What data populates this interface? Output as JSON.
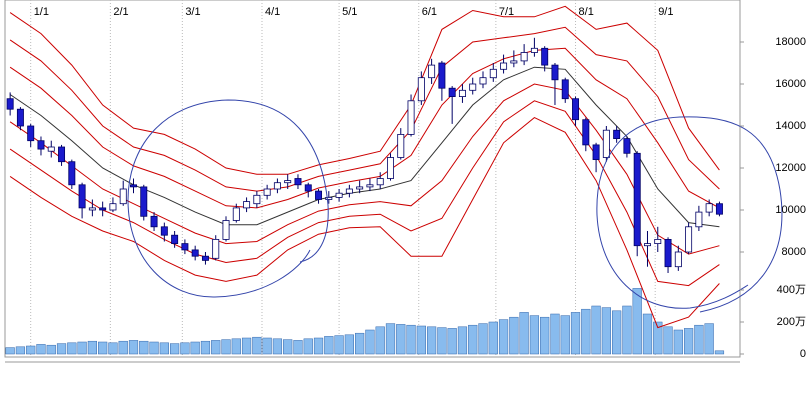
{
  "chart_data": {
    "type": "candlestick",
    "x": [
      -8,
      -4,
      0,
      4,
      8,
      12,
      16,
      20,
      24,
      28,
      32,
      36,
      40,
      44,
      48,
      52,
      56,
      60,
      64,
      68,
      72,
      76,
      80,
      84,
      88,
      92,
      96,
      100,
      104,
      108,
      112,
      116,
      120,
      124,
      128,
      132,
      136,
      140,
      144,
      148,
      152,
      156,
      160,
      164,
      168,
      172,
      176,
      180,
      184,
      188,
      192,
      196,
      200,
      204,
      208,
      212,
      216,
      220,
      224,
      228,
      232,
      236,
      240,
      244,
      248,
      252,
      256,
      260,
      264,
      268
    ],
    "open": [
      15300,
      14800,
      14000,
      13300,
      12800,
      13000,
      12300,
      11200,
      10000,
      10100,
      10000,
      10300,
      11200,
      11100,
      9700,
      9200,
      8800,
      8400,
      8100,
      7800,
      7700,
      8600,
      9500,
      10100,
      10300,
      10700,
      11000,
      11300,
      11500,
      11200,
      10900,
      10500,
      10600,
      10800,
      11000,
      11100,
      11200,
      11500,
      12500,
      13600,
      15200,
      16300,
      17000,
      15800,
      15400,
      15700,
      16000,
      16300,
      16700,
      17000,
      17100,
      17500,
      17700,
      16900,
      16200,
      15300,
      14300,
      13100,
      12500,
      13800,
      13400,
      12700,
      8300,
      8400,
      8600,
      7300,
      8000,
      9200,
      9900,
      10300
    ],
    "high": [
      15600,
      14900,
      14100,
      13500,
      13300,
      13100,
      12400,
      11300,
      10500,
      10400,
      10600,
      11400,
      11500,
      11200,
      9900,
      9400,
      9000,
      8600,
      8300,
      8000,
      8800,
      9700,
      10300,
      10600,
      10900,
      11200,
      11500,
      11700,
      11700,
      11300,
      11000,
      10900,
      11000,
      11200,
      11400,
      11500,
      11800,
      12700,
      13900,
      15500,
      16600,
      17200,
      17100,
      15900,
      16000,
      16300,
      16600,
      17000,
      17400,
      17600,
      17900,
      18200,
      17800,
      17000,
      16300,
      15400,
      14400,
      13200,
      14000,
      14000,
      13500,
      12800,
      9000,
      9200,
      8700,
      8300,
      9400,
      10200,
      10500,
      10400
    ],
    "low": [
      14500,
      13800,
      13000,
      12600,
      12500,
      12100,
      11000,
      9600,
      9700,
      9700,
      9900,
      10200,
      10800,
      9500,
      9000,
      8500,
      8200,
      7900,
      7600,
      7400,
      7600,
      8500,
      9400,
      9900,
      10100,
      10500,
      10800,
      11000,
      11000,
      10600,
      10300,
      10300,
      10400,
      10600,
      10800,
      10900,
      11000,
      11400,
      12400,
      13500,
      15000,
      16000,
      15200,
      14100,
      15100,
      15500,
      15800,
      16100,
      16500,
      16800,
      16900,
      17300,
      16600,
      15000,
      15100,
      14000,
      12800,
      11800,
      12300,
      13200,
      12500,
      7800,
      7300,
      8000,
      7000,
      7100,
      7900,
      9000,
      9700,
      9700
    ],
    "close": [
      14800,
      14000,
      13300,
      12900,
      13000,
      12300,
      11200,
      10100,
      10100,
      10000,
      10300,
      11000,
      11100,
      9700,
      9200,
      8800,
      8400,
      8100,
      7800,
      7600,
      8600,
      9500,
      10100,
      10400,
      10700,
      11000,
      11300,
      11400,
      11200,
      10900,
      10500,
      10600,
      10800,
      11000,
      11100,
      11200,
      11500,
      12500,
      13600,
      15200,
      16300,
      16900,
      15800,
      15400,
      15700,
      16000,
      16300,
      16700,
      17000,
      17100,
      17500,
      17700,
      16900,
      16200,
      15300,
      14300,
      13100,
      12400,
      13800,
      13400,
      12700,
      8300,
      8400,
      8600,
      7300,
      8000,
      9200,
      9900,
      10300,
      9800
    ],
    "up_color": "#ffffff",
    "down_color": "#1a1acc",
    "outline_color": "#000066",
    "xlim": [
      -10,
      276
    ],
    "ylim": [
      3000,
      20000
    ],
    "xticks": [
      {
        "value": 0,
        "label": "1/1"
      },
      {
        "value": 31,
        "label": "2/1"
      },
      {
        "value": 59,
        "label": "3/1"
      },
      {
        "value": 90,
        "label": "4/1"
      },
      {
        "value": 120,
        "label": "5/1"
      },
      {
        "value": 151,
        "label": "6/1"
      },
      {
        "value": 181,
        "label": "7/1"
      },
      {
        "value": 212,
        "label": "8/1"
      },
      {
        "value": 243,
        "label": "9/1"
      }
    ],
    "yticks": [
      8000,
      10000,
      12000,
      14000,
      16000,
      18000
    ],
    "grid": true,
    "bands": {
      "x": [
        -8,
        4,
        16,
        28,
        40,
        52,
        64,
        76,
        88,
        100,
        112,
        124,
        136,
        148,
        160,
        172,
        184,
        196,
        208,
        220,
        232,
        244,
        256,
        268
      ],
      "series": [
        {
          "color": "#cc0000",
          "values": [
            19400,
            18400,
            16900,
            15000,
            13900,
            13600,
            12900,
            12000,
            11700,
            11700,
            12150,
            12450,
            12800,
            15000,
            18600,
            19500,
            19200,
            19200,
            19700,
            18600,
            18900,
            17600,
            13900,
            11900
          ]
        },
        {
          "color": "#cc0000",
          "values": [
            18100,
            17100,
            15700,
            14000,
            13000,
            12600,
            11900,
            11100,
            10900,
            11100,
            11600,
            11900,
            12200,
            13800,
            16800,
            18000,
            18200,
            18400,
            18700,
            17400,
            17100,
            15400,
            12400,
            11000
          ]
        },
        {
          "color": "#cc0000",
          "values": [
            16800,
            15800,
            14500,
            13000,
            12100,
            11600,
            10900,
            10200,
            10100,
            10500,
            11050,
            11350,
            11600,
            12600,
            15000,
            16500,
            17200,
            17600,
            17700,
            16200,
            15300,
            13200,
            10900,
            10100
          ]
        },
        {
          "color": "#333333",
          "values": [
            15500,
            14500,
            13300,
            12000,
            11200,
            10600,
            9900,
            9300,
            9300,
            9900,
            10500,
            10800,
            11000,
            11400,
            13200,
            15000,
            16200,
            16800,
            16700,
            15000,
            13500,
            11000,
            9400,
            9200
          ]
        },
        {
          "color": "#cc0000",
          "values": [
            14200,
            13200,
            12100,
            11000,
            10300,
            9600,
            8900,
            8400,
            8500,
            9300,
            9950,
            10250,
            10400,
            10200,
            11400,
            13500,
            15200,
            16000,
            15700,
            13800,
            11700,
            8800,
            7900,
            8300
          ]
        },
        {
          "color": "#cc0000",
          "values": [
            12900,
            11900,
            10900,
            10000,
            9400,
            8600,
            7900,
            7500,
            7700,
            8700,
            9400,
            9700,
            9800,
            9000,
            9600,
            12000,
            14200,
            15200,
            14700,
            12600,
            9900,
            6600,
            6400,
            7400
          ]
        },
        {
          "color": "#cc0000",
          "values": [
            11600,
            10600,
            9700,
            9000,
            8500,
            7600,
            6900,
            6600,
            6900,
            8100,
            8850,
            9150,
            9200,
            7800,
            7800,
            10500,
            13200,
            14400,
            13700,
            11400,
            8100,
            4400,
            4900,
            6500
          ]
        }
      ]
    },
    "volume": {
      "color": "#88bbee",
      "values": [
        40,
        45,
        50,
        60,
        55,
        65,
        70,
        75,
        80,
        75,
        70,
        80,
        85,
        80,
        75,
        70,
        65,
        70,
        75,
        80,
        85,
        90,
        95,
        100,
        105,
        100,
        95,
        90,
        85,
        95,
        100,
        110,
        115,
        120,
        130,
        150,
        170,
        190,
        185,
        180,
        175,
        170,
        165,
        160,
        170,
        180,
        190,
        200,
        215,
        230,
        260,
        240,
        230,
        250,
        240,
        260,
        280,
        300,
        290,
        270,
        300,
        410,
        250,
        200,
        170,
        150,
        160,
        180,
        190,
        20
      ],
      "ylim": [
        0,
        420
      ],
      "yticks": [
        0,
        {
          "value": 200,
          "label": "200万"
        },
        {
          "value": 400,
          "label": "400万"
        }
      ]
    }
  }
}
